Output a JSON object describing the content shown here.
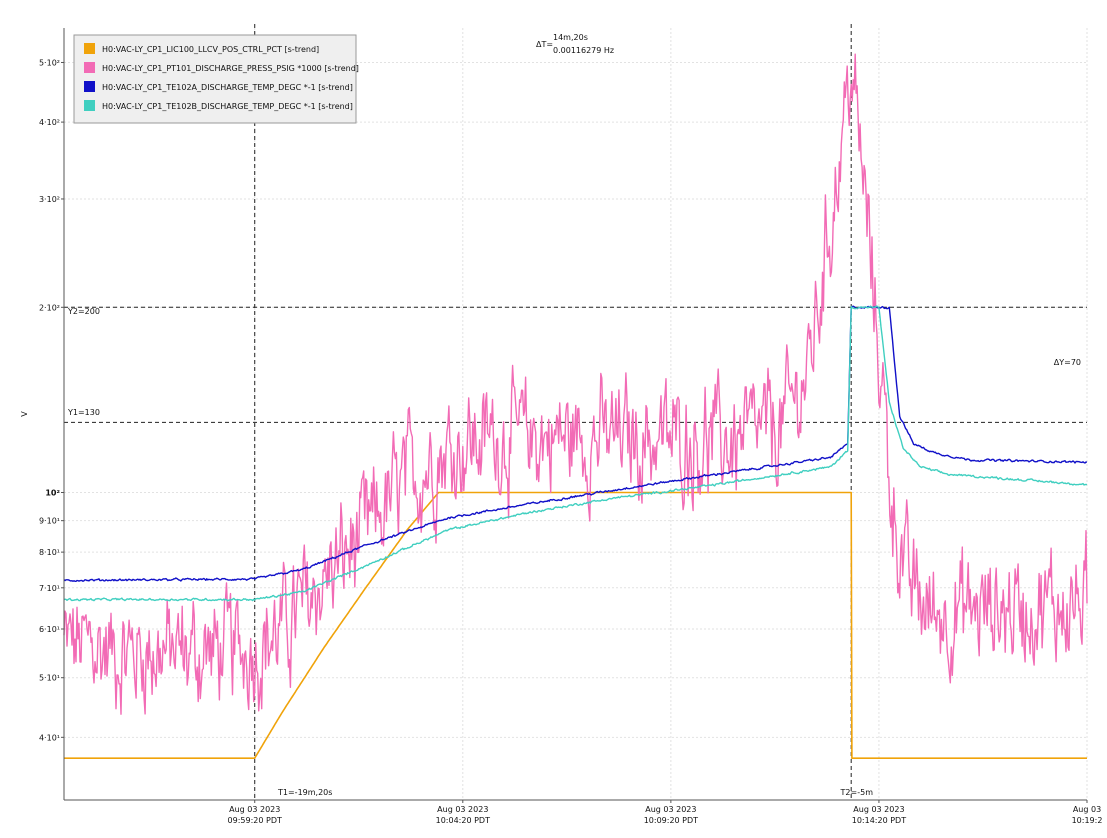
{
  "chart_data": {
    "type": "line",
    "ylabel": "V",
    "yscale": "log",
    "ylim": [
      35,
      520
    ],
    "xlim": [
      "2023-08-03T09:54:45",
      "2023-08-03T10:19:20"
    ],
    "grid": true,
    "legend_position": "top-left",
    "y_ticks": [
      {
        "value": 40,
        "label": "4·10¹"
      },
      {
        "value": 50,
        "label": "5·10¹"
      },
      {
        "value": 60,
        "label": "6·10¹"
      },
      {
        "value": 70,
        "label": "7·10¹"
      },
      {
        "value": 80,
        "label": "8·10¹"
      },
      {
        "value": 90,
        "label": "9·10¹"
      },
      {
        "value": 100,
        "label": "10²"
      },
      {
        "value": 200,
        "label": "2·10²"
      },
      {
        "value": 300,
        "label": "3·10²"
      },
      {
        "value": 400,
        "label": "4·10²"
      },
      {
        "value": 500,
        "label": "5·10²"
      }
    ],
    "x_ticks": [
      {
        "t": "2023-08-03T09:59:20",
        "date": "Aug 03 2023",
        "time": "09:59:20 PDT"
      },
      {
        "t": "2023-08-03T10:04:20",
        "date": "Aug 03 2023",
        "time": "10:04:20 PDT"
      },
      {
        "t": "2023-08-03T10:09:20",
        "date": "Aug 03 2023",
        "time": "10:09:20 PDT"
      },
      {
        "t": "2023-08-03T10:14:20",
        "date": "Aug 03 2023",
        "time": "10:14:20 PDT"
      },
      {
        "t": "2023-08-03T10:19:20",
        "date": "Aug 03",
        "time": "10:19:2"
      }
    ],
    "cursors": {
      "t1": {
        "t": "2023-08-03T09:59:20",
        "label": "T1=-19m,20s"
      },
      "t2": {
        "t": "2023-08-03T10:13:40",
        "label": "T2=-5m"
      },
      "y1": {
        "value": 130,
        "label": "Y1=130"
      },
      "y2": {
        "value": 200,
        "label": "Y2=200"
      },
      "delta_t": {
        "symbol": "ΔT=",
        "value": "14m,20s",
        "freq": "0.00116279 Hz"
      },
      "delta_y": {
        "label": "ΔY=70"
      }
    },
    "series": [
      {
        "name": "H0:VAC-LY_CP1_LIC100_LLCV_POS_CTRL_PCT [s-trend]",
        "color": "#f0a30a",
        "noise": 0,
        "points": [
          [
            "2023-08-03T09:54:45",
            37
          ],
          [
            "2023-08-03T09:59:20",
            37
          ],
          [
            "2023-08-03T10:00:00",
            44
          ],
          [
            "2023-08-03T10:01:00",
            56
          ],
          [
            "2023-08-03T10:02:00",
            70
          ],
          [
            "2023-08-03T10:03:00",
            87
          ],
          [
            "2023-08-03T10:03:45",
            100
          ],
          [
            "2023-08-03T10:13:40",
            100
          ],
          [
            "2023-08-03T10:13:41",
            37
          ],
          [
            "2023-08-03T10:19:20",
            37
          ]
        ]
      },
      {
        "name": "H0:VAC-LY_CP1_PT101_DISCHARGE_PRESS_PSIG *1000 [s-trend]",
        "color": "#f26bb5",
        "noise": 0.15,
        "points": [
          [
            "2023-08-03T09:54:45",
            57
          ],
          [
            "2023-08-03T09:56:00",
            55
          ],
          [
            "2023-08-03T09:58:00",
            55
          ],
          [
            "2023-08-03T09:59:20",
            56
          ],
          [
            "2023-08-03T10:00:00",
            60
          ],
          [
            "2023-08-03T10:01:00",
            72
          ],
          [
            "2023-08-03T10:02:00",
            86
          ],
          [
            "2023-08-03T10:03:00",
            105
          ],
          [
            "2023-08-03T10:04:00",
            118
          ],
          [
            "2023-08-03T10:05:00",
            123
          ],
          [
            "2023-08-03T10:07:00",
            123
          ],
          [
            "2023-08-03T10:09:00",
            122
          ],
          [
            "2023-08-03T10:11:00",
            121
          ],
          [
            "2023-08-03T10:12:00",
            128
          ],
          [
            "2023-08-03T10:12:40",
            160
          ],
          [
            "2023-08-03T10:13:00",
            230
          ],
          [
            "2023-08-03T10:13:20",
            330
          ],
          [
            "2023-08-03T10:13:40",
            490
          ],
          [
            "2023-08-03T10:14:00",
            300
          ],
          [
            "2023-08-03T10:14:20",
            170
          ],
          [
            "2023-08-03T10:14:40",
            95
          ],
          [
            "2023-08-03T10:15:00",
            72
          ],
          [
            "2023-08-03T10:15:30",
            64
          ],
          [
            "2023-08-03T10:16:00",
            64
          ],
          [
            "2023-08-03T10:19:20",
            66
          ]
        ]
      },
      {
        "name": "H0:VAC-LY_CP1_TE102A_DISCHARGE_TEMP_DEGC *-1 [s-trend]",
        "color": "#1010c8",
        "noise": 0.003,
        "points": [
          [
            "2023-08-03T09:54:45",
            72
          ],
          [
            "2023-08-03T09:59:20",
            72.3
          ],
          [
            "2023-08-03T10:00:30",
            75
          ],
          [
            "2023-08-03T10:02:00",
            82
          ],
          [
            "2023-08-03T10:04:00",
            91
          ],
          [
            "2023-08-03T10:06:00",
            96
          ],
          [
            "2023-08-03T10:08:00",
            101
          ],
          [
            "2023-08-03T10:10:00",
            106
          ],
          [
            "2023-08-03T10:12:00",
            111
          ],
          [
            "2023-08-03T10:13:10",
            114
          ],
          [
            "2023-08-03T10:13:35",
            120
          ],
          [
            "2023-08-03T10:13:40",
            200
          ],
          [
            "2023-08-03T10:14:35",
            200
          ],
          [
            "2023-08-03T10:14:50",
            133
          ],
          [
            "2023-08-03T10:15:10",
            120
          ],
          [
            "2023-08-03T10:15:40",
            116
          ],
          [
            "2023-08-03T10:16:30",
            113
          ],
          [
            "2023-08-03T10:19:20",
            112
          ]
        ]
      },
      {
        "name": "H0:VAC-LY_CP1_TE102B_DISCHARGE_TEMP_DEGC *-1 [s-trend]",
        "color": "#40cfc0",
        "noise": 0.003,
        "points": [
          [
            "2023-08-03T09:54:45",
            67
          ],
          [
            "2023-08-03T09:59:20",
            67
          ],
          [
            "2023-08-03T10:00:30",
            69
          ],
          [
            "2023-08-03T10:02:00",
            76
          ],
          [
            "2023-08-03T10:04:00",
            87
          ],
          [
            "2023-08-03T10:06:00",
            93
          ],
          [
            "2023-08-03T10:08:00",
            98
          ],
          [
            "2023-08-03T10:10:00",
            102
          ],
          [
            "2023-08-03T10:12:00",
            107
          ],
          [
            "2023-08-03T10:13:10",
            110
          ],
          [
            "2023-08-03T10:13:35",
            117
          ],
          [
            "2023-08-03T10:13:40",
            200
          ],
          [
            "2023-08-03T10:14:20",
            200
          ],
          [
            "2023-08-03T10:14:35",
            140
          ],
          [
            "2023-08-03T10:14:55",
            118
          ],
          [
            "2023-08-03T10:15:20",
            110
          ],
          [
            "2023-08-03T10:16:00",
            107
          ],
          [
            "2023-08-03T10:19:20",
            103
          ]
        ]
      }
    ]
  }
}
